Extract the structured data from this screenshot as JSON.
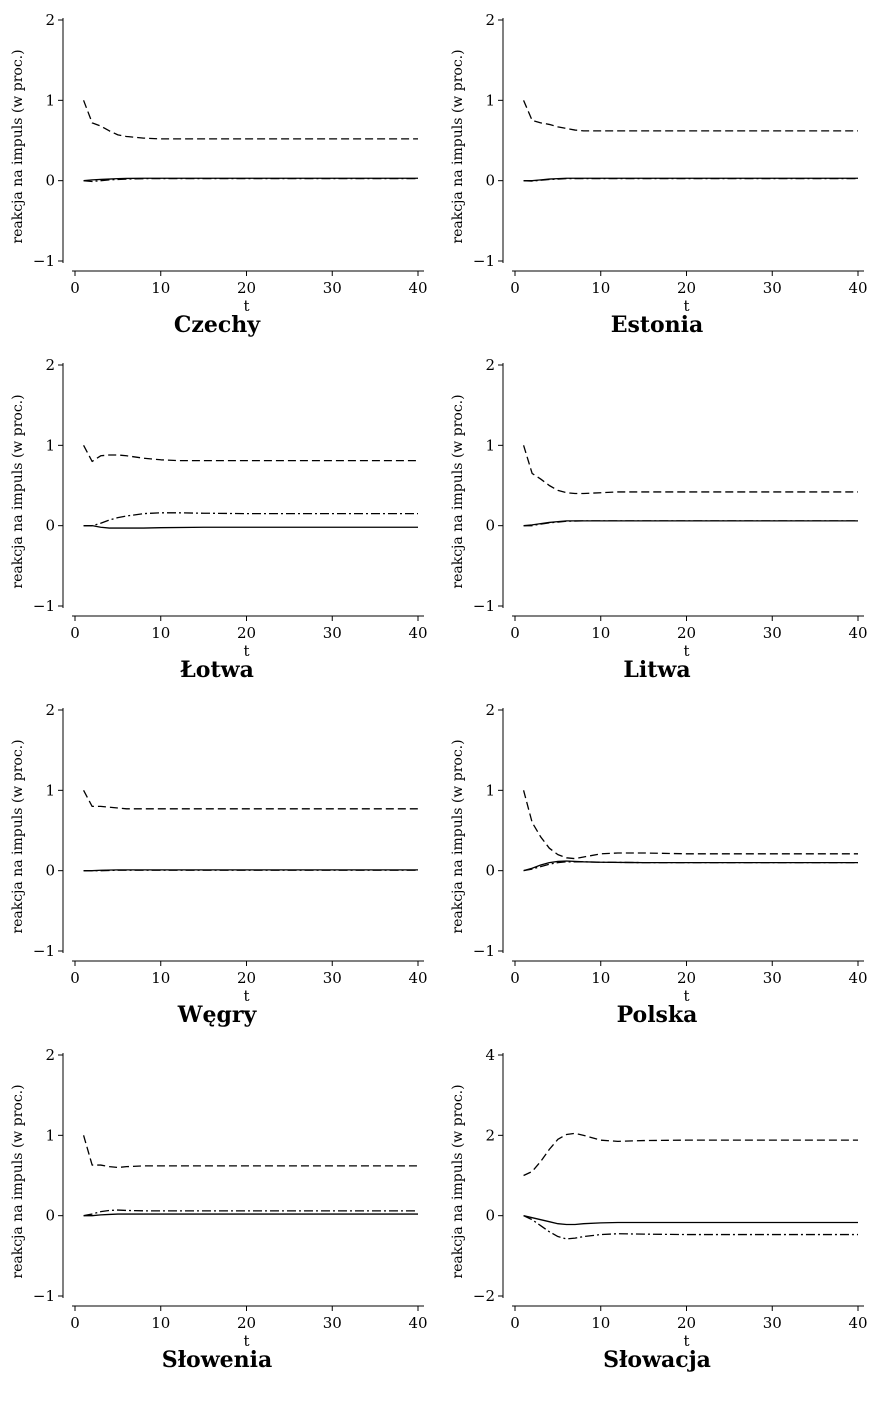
{
  "chart_data": [
    {
      "type": "line",
      "title": "Czechy",
      "xlabel": "t",
      "ylabel": "reakcja na impuls (w proc.)",
      "xlim": [
        0,
        40
      ],
      "ylim": [
        -1,
        2
      ],
      "xticks": [
        0,
        10,
        20,
        30,
        40
      ],
      "yticks": [
        -1,
        0,
        1,
        2
      ],
      "xtick_labels": [
        "0",
        "10",
        "20",
        "30",
        "40"
      ],
      "ytick_labels": [
        "−1",
        "0",
        "1",
        "2"
      ],
      "series": [
        {
          "style": "dashed",
          "x": [
            1,
            2,
            3,
            4,
            5,
            6,
            8,
            10,
            15,
            20,
            30,
            40
          ],
          "y": [
            1.0,
            0.72,
            0.68,
            0.62,
            0.57,
            0.55,
            0.53,
            0.52,
            0.52,
            0.52,
            0.52,
            0.52
          ]
        },
        {
          "style": "solid",
          "x": [
            1,
            2,
            3,
            4,
            5,
            6,
            8,
            10,
            20,
            30,
            40
          ],
          "y": [
            0.0,
            0.01,
            0.015,
            0.02,
            0.025,
            0.028,
            0.03,
            0.03,
            0.03,
            0.03,
            0.03
          ]
        },
        {
          "style": "dashdot",
          "x": [
            1,
            2,
            3,
            4,
            5,
            6,
            8,
            10,
            20,
            30,
            40
          ],
          "y": [
            0.0,
            -0.01,
            0.0,
            0.01,
            0.015,
            0.02,
            0.025,
            0.025,
            0.025,
            0.025,
            0.025
          ]
        }
      ]
    },
    {
      "type": "line",
      "title": "Estonia",
      "xlabel": "t",
      "ylabel": "reakcja na impuls (w proc.)",
      "xlim": [
        0,
        40
      ],
      "ylim": [
        -1,
        2
      ],
      "xticks": [
        0,
        10,
        20,
        30,
        40
      ],
      "yticks": [
        -1,
        0,
        1,
        2
      ],
      "xtick_labels": [
        "0",
        "10",
        "20",
        "30",
        "40"
      ],
      "ytick_labels": [
        "−1",
        "0",
        "1",
        "2"
      ],
      "series": [
        {
          "style": "dashed",
          "x": [
            1,
            2,
            3,
            4,
            5,
            6,
            7,
            8,
            10,
            15,
            20,
            30,
            40
          ],
          "y": [
            1.0,
            0.75,
            0.72,
            0.7,
            0.67,
            0.65,
            0.63,
            0.62,
            0.62,
            0.62,
            0.62,
            0.62,
            0.62
          ]
        },
        {
          "style": "solid",
          "x": [
            1,
            2,
            3,
            4,
            5,
            6,
            8,
            10,
            20,
            30,
            40
          ],
          "y": [
            0.0,
            0.0,
            0.01,
            0.02,
            0.025,
            0.03,
            0.03,
            0.03,
            0.03,
            0.03,
            0.03
          ]
        },
        {
          "style": "dashdot",
          "x": [
            1,
            2,
            3,
            4,
            5,
            6,
            8,
            10,
            20,
            30,
            40
          ],
          "y": [
            0.0,
            -0.005,
            0.005,
            0.015,
            0.02,
            0.025,
            0.025,
            0.025,
            0.025,
            0.025,
            0.025
          ]
        }
      ]
    },
    {
      "type": "line",
      "title": "Łotwa",
      "xlabel": "t",
      "ylabel": "reakcja na impuls (w proc.)",
      "xlim": [
        0,
        40
      ],
      "ylim": [
        -1,
        2
      ],
      "xticks": [
        0,
        10,
        20,
        30,
        40
      ],
      "yticks": [
        -1,
        0,
        1,
        2
      ],
      "xtick_labels": [
        "0",
        "10",
        "20",
        "30",
        "40"
      ],
      "ytick_labels": [
        "−1",
        "0",
        "1",
        "2"
      ],
      "series": [
        {
          "style": "dashed",
          "x": [
            1,
            2,
            3,
            4,
            5,
            6,
            8,
            10,
            12,
            15,
            20,
            30,
            40
          ],
          "y": [
            1.0,
            0.8,
            0.87,
            0.88,
            0.88,
            0.87,
            0.84,
            0.82,
            0.81,
            0.81,
            0.81,
            0.81,
            0.81
          ]
        },
        {
          "style": "solid",
          "x": [
            1,
            2,
            3,
            4,
            5,
            6,
            8,
            10,
            15,
            20,
            30,
            40
          ],
          "y": [
            0.0,
            0.0,
            -0.02,
            -0.03,
            -0.03,
            -0.03,
            -0.03,
            -0.025,
            -0.02,
            -0.02,
            -0.02,
            -0.02
          ]
        },
        {
          "style": "dashdot",
          "x": [
            1,
            2,
            3,
            4,
            5,
            6,
            8,
            10,
            12,
            15,
            20,
            30,
            40
          ],
          "y": [
            0.0,
            0.0,
            0.03,
            0.07,
            0.1,
            0.12,
            0.15,
            0.16,
            0.16,
            0.155,
            0.15,
            0.15,
            0.15
          ]
        }
      ]
    },
    {
      "type": "line",
      "title": "Litwa",
      "xlabel": "t",
      "ylabel": "reakcja na impuls (w proc.)",
      "xlim": [
        0,
        40
      ],
      "ylim": [
        -1,
        2
      ],
      "xticks": [
        0,
        10,
        20,
        30,
        40
      ],
      "yticks": [
        -1,
        0,
        1,
        2
      ],
      "xtick_labels": [
        "0",
        "10",
        "20",
        "30",
        "40"
      ],
      "ytick_labels": [
        "−1",
        "0",
        "1",
        "2"
      ],
      "series": [
        {
          "style": "dashed",
          "x": [
            1,
            2,
            3,
            4,
            5,
            6,
            7,
            8,
            10,
            12,
            20,
            30,
            40
          ],
          "y": [
            1.0,
            0.65,
            0.58,
            0.5,
            0.44,
            0.41,
            0.4,
            0.4,
            0.41,
            0.42,
            0.42,
            0.42,
            0.42
          ]
        },
        {
          "style": "solid",
          "x": [
            1,
            2,
            3,
            4,
            5,
            6,
            8,
            10,
            20,
            30,
            40
          ],
          "y": [
            0.0,
            0.01,
            0.025,
            0.04,
            0.05,
            0.06,
            0.06,
            0.06,
            0.06,
            0.06,
            0.06
          ]
        },
        {
          "style": "dashdot",
          "x": [
            1,
            2,
            3,
            4,
            5,
            6,
            8,
            10,
            20,
            30,
            40
          ],
          "y": [
            0.0,
            0.0,
            0.02,
            0.035,
            0.045,
            0.055,
            0.06,
            0.06,
            0.06,
            0.06,
            0.06
          ]
        }
      ]
    },
    {
      "type": "line",
      "title": "Węgry",
      "xlabel": "t",
      "ylabel": "reakcja na impuls (w proc.)",
      "xlim": [
        0,
        40
      ],
      "ylim": [
        -1,
        2
      ],
      "xticks": [
        0,
        10,
        20,
        30,
        40
      ],
      "yticks": [
        -1,
        0,
        1,
        2
      ],
      "xtick_labels": [
        "0",
        "10",
        "20",
        "30",
        "40"
      ],
      "ytick_labels": [
        "−1",
        "0",
        "1",
        "2"
      ],
      "series": [
        {
          "style": "dashed",
          "x": [
            1,
            2,
            3,
            4,
            5,
            6,
            8,
            10,
            15,
            20,
            30,
            40
          ],
          "y": [
            1.0,
            0.8,
            0.8,
            0.79,
            0.78,
            0.77,
            0.77,
            0.77,
            0.77,
            0.77,
            0.77,
            0.77
          ]
        },
        {
          "style": "solid",
          "x": [
            1,
            2,
            3,
            5,
            10,
            20,
            30,
            40
          ],
          "y": [
            0.0,
            0.0,
            0.005,
            0.01,
            0.01,
            0.01,
            0.01,
            0.01
          ]
        },
        {
          "style": "dashdot",
          "x": [
            1,
            2,
            3,
            5,
            10,
            20,
            30,
            40
          ],
          "y": [
            0.0,
            0.0,
            0.0,
            0.005,
            0.005,
            0.005,
            0.005,
            0.005
          ]
        }
      ]
    },
    {
      "type": "line",
      "title": "Polska",
      "xlabel": "t",
      "ylabel": "reakcja na impuls (w proc.)",
      "xlim": [
        0,
        40
      ],
      "ylim": [
        -1,
        2
      ],
      "xticks": [
        0,
        10,
        20,
        30,
        40
      ],
      "yticks": [
        -1,
        0,
        1,
        2
      ],
      "xtick_labels": [
        "0",
        "10",
        "20",
        "30",
        "40"
      ],
      "ytick_labels": [
        "−1",
        "0",
        "1",
        "2"
      ],
      "series": [
        {
          "style": "dashed",
          "x": [
            1,
            2,
            3,
            4,
            5,
            6,
            7,
            8,
            10,
            12,
            15,
            20,
            30,
            40
          ],
          "y": [
            1.0,
            0.6,
            0.42,
            0.28,
            0.2,
            0.16,
            0.15,
            0.17,
            0.21,
            0.22,
            0.22,
            0.21,
            0.21,
            0.21
          ]
        },
        {
          "style": "solid",
          "x": [
            1,
            2,
            3,
            4,
            5,
            6,
            8,
            10,
            15,
            20,
            30,
            40
          ],
          "y": [
            0.0,
            0.03,
            0.07,
            0.1,
            0.115,
            0.12,
            0.11,
            0.105,
            0.1,
            0.1,
            0.1,
            0.1
          ]
        },
        {
          "style": "dashdot",
          "x": [
            1,
            2,
            3,
            4,
            5,
            6,
            8,
            10,
            15,
            20,
            30,
            40
          ],
          "y": [
            0.0,
            0.02,
            0.05,
            0.08,
            0.1,
            0.11,
            0.11,
            0.105,
            0.1,
            0.1,
            0.1,
            0.1
          ]
        }
      ]
    },
    {
      "type": "line",
      "title": "Słowenia",
      "xlabel": "t",
      "ylabel": "reakcja na impuls (w proc.)",
      "xlim": [
        0,
        40
      ],
      "ylim": [
        -1,
        2
      ],
      "xticks": [
        0,
        10,
        20,
        30,
        40
      ],
      "yticks": [
        -1,
        0,
        1,
        2
      ],
      "xtick_labels": [
        "0",
        "10",
        "20",
        "30",
        "40"
      ],
      "ytick_labels": [
        "−1",
        "0",
        "1",
        "2"
      ],
      "series": [
        {
          "style": "dashed",
          "x": [
            1,
            2,
            3,
            4,
            5,
            6,
            8,
            10,
            15,
            20,
            30,
            40
          ],
          "y": [
            1.0,
            0.63,
            0.63,
            0.61,
            0.6,
            0.61,
            0.62,
            0.62,
            0.62,
            0.62,
            0.62,
            0.62
          ]
        },
        {
          "style": "solid",
          "x": [
            1,
            2,
            3,
            4,
            5,
            6,
            8,
            10,
            20,
            30,
            40
          ],
          "y": [
            0.0,
            0.0,
            0.01,
            0.015,
            0.02,
            0.02,
            0.02,
            0.02,
            0.02,
            0.02,
            0.02
          ]
        },
        {
          "style": "dashdot",
          "x": [
            1,
            2,
            3,
            4,
            5,
            6,
            8,
            10,
            20,
            30,
            40
          ],
          "y": [
            0.0,
            0.02,
            0.05,
            0.065,
            0.07,
            0.065,
            0.06,
            0.06,
            0.06,
            0.06,
            0.06
          ]
        }
      ]
    },
    {
      "type": "line",
      "title": "Słowacja",
      "xlabel": "t",
      "ylabel": "reakcja na impuls (w proc.)",
      "xlim": [
        0,
        40
      ],
      "ylim": [
        -2,
        4
      ],
      "xticks": [
        0,
        10,
        20,
        30,
        40
      ],
      "yticks": [
        -2,
        0,
        2,
        4
      ],
      "xtick_labels": [
        "0",
        "10",
        "20",
        "30",
        "40"
      ],
      "ytick_labels": [
        "−2",
        "0",
        "2",
        "4"
      ],
      "series": [
        {
          "style": "dashed",
          "x": [
            1,
            2,
            3,
            4,
            5,
            6,
            7,
            8,
            10,
            12,
            15,
            20,
            30,
            40
          ],
          "y": [
            1.0,
            1.1,
            1.35,
            1.65,
            1.9,
            2.02,
            2.05,
            2.0,
            1.88,
            1.85,
            1.87,
            1.88,
            1.88,
            1.88
          ]
        },
        {
          "style": "solid",
          "x": [
            1,
            2,
            3,
            4,
            5,
            6,
            7,
            8,
            10,
            12,
            15,
            20,
            30,
            40
          ],
          "y": [
            0.0,
            -0.05,
            -0.1,
            -0.15,
            -0.2,
            -0.22,
            -0.22,
            -0.2,
            -0.18,
            -0.17,
            -0.17,
            -0.17,
            -0.17,
            -0.17
          ]
        },
        {
          "style": "dashdot",
          "x": [
            1,
            2,
            3,
            4,
            5,
            6,
            7,
            8,
            10,
            12,
            15,
            20,
            30,
            40
          ],
          "y": [
            0.0,
            -0.1,
            -0.25,
            -0.4,
            -0.52,
            -0.58,
            -0.56,
            -0.52,
            -0.47,
            -0.45,
            -0.46,
            -0.47,
            -0.47,
            -0.47
          ]
        }
      ]
    }
  ]
}
